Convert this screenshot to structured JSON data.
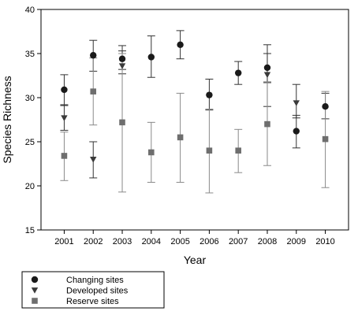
{
  "chart_data": {
    "type": "scatter",
    "xlabel": "Year",
    "ylabel": "Species Richness",
    "x": [
      2001,
      2002,
      2003,
      2004,
      2005,
      2006,
      2007,
      2008,
      2009,
      2010
    ],
    "x_ticks": [
      "2001",
      "2002",
      "2003",
      "2004",
      "2005",
      "2006",
      "2007",
      "2008",
      "2009",
      "2010"
    ],
    "ylim": [
      15,
      40
    ],
    "y_ticks": [
      "15",
      "20",
      "25",
      "30",
      "35",
      "40"
    ],
    "grid": false,
    "legend_position": "bottom-left",
    "error_bars": true,
    "series": [
      {
        "name": "Changing sites",
        "marker": "circle",
        "color": "#1a1a1a",
        "values": [
          30.9,
          34.8,
          34.4,
          34.6,
          36.0,
          30.3,
          32.8,
          33.4,
          26.2,
          29.0
        ],
        "err_low": [
          29.1,
          33.0,
          33.2,
          32.3,
          34.4,
          28.6,
          31.5,
          31.7,
          24.3,
          27.6
        ],
        "err_high": [
          32.6,
          36.5,
          35.9,
          37.0,
          37.6,
          32.1,
          34.1,
          35.0,
          28.0,
          30.5
        ]
      },
      {
        "name": "Developed sites",
        "marker": "triangle-down",
        "color": "#3a3a3a",
        "values": [
          27.7,
          23.0,
          33.6,
          null,
          null,
          null,
          null,
          32.6,
          29.4,
          null
        ],
        "err_low": [
          26.3,
          20.9,
          32.7,
          null,
          null,
          null,
          null,
          29.0,
          27.7,
          null
        ],
        "err_high": [
          29.2,
          25.0,
          35.3,
          null,
          null,
          null,
          null,
          36.0,
          31.5,
          null
        ]
      },
      {
        "name": "Reserve sites",
        "marker": "square",
        "color": "#6e6e6e",
        "values": [
          23.4,
          30.7,
          27.2,
          23.8,
          25.5,
          24.0,
          24.0,
          27.0,
          null,
          25.3
        ],
        "err_low": [
          20.6,
          26.9,
          19.3,
          20.4,
          20.4,
          19.2,
          21.5,
          22.3,
          null,
          19.8
        ],
        "err_high": [
          26.1,
          34.5,
          35.0,
          27.2,
          30.5,
          28.7,
          26.4,
          31.8,
          null,
          30.7
        ]
      }
    ]
  }
}
